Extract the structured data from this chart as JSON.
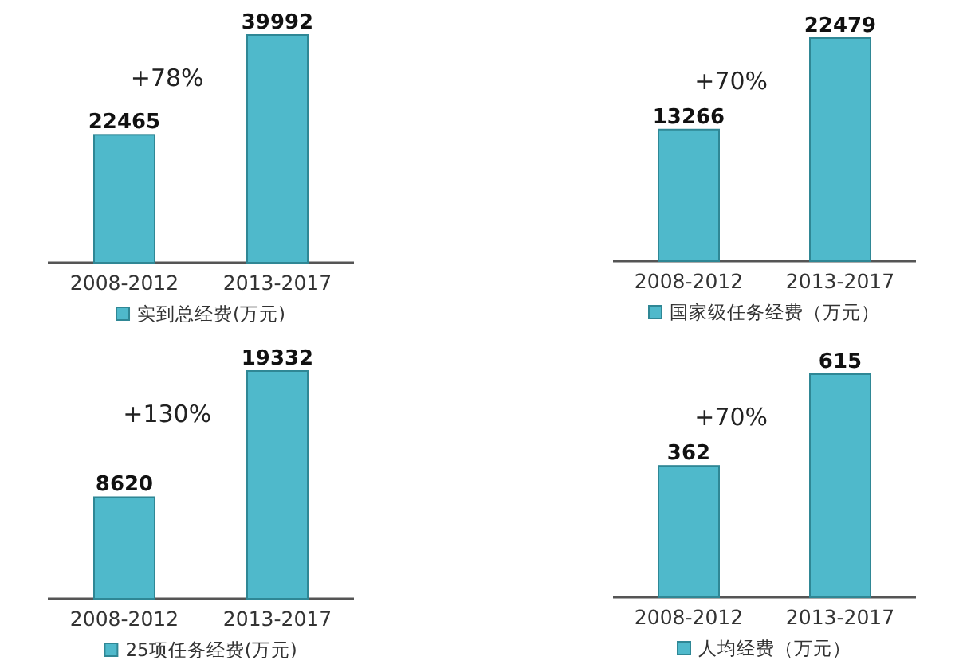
{
  "chart_data": [
    {
      "type": "bar",
      "categories": [
        "2008-2012",
        "2013-2017"
      ],
      "series": [
        {
          "name": "实到总经费(万元)",
          "color": "#4fb9cb",
          "values": [
            22465,
            39992
          ]
        }
      ],
      "data_labels": true,
      "annotations": [
        "+78%"
      ],
      "legend": "bottom"
    },
    {
      "type": "bar",
      "categories": [
        "2008-2012",
        "2013-2017"
      ],
      "series": [
        {
          "name": "国家级任务经费（万元）",
          "color": "#4fb9cb",
          "values": [
            13266,
            22479
          ]
        }
      ],
      "data_labels": true,
      "annotations": [
        "+70%"
      ],
      "legend": "bottom"
    },
    {
      "type": "bar",
      "categories": [
        "2008-2012",
        "2013-2017"
      ],
      "series": [
        {
          "name": "25项任务经费(万元)",
          "color": "#4fb9cb",
          "values": [
            8620,
            19332
          ]
        }
      ],
      "data_labels": true,
      "annotations": [
        "+130%"
      ],
      "legend": "bottom"
    },
    {
      "type": "bar",
      "categories": [
        "2008-2012",
        "2013-2017"
      ],
      "series": [
        {
          "name": "人均经费（万元）",
          "color": "#4fb9cb",
          "values": [
            362,
            615
          ]
        }
      ],
      "data_labels": true,
      "annotations": [
        "+70%"
      ],
      "legend": "bottom"
    }
  ]
}
